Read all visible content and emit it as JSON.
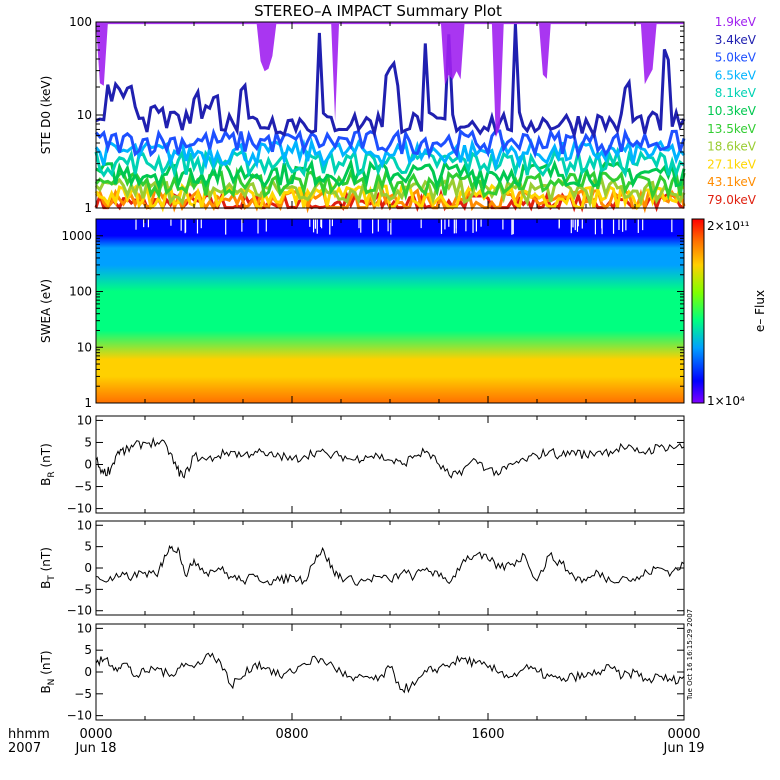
{
  "title": "STEREO–A IMPACT Summary Plot",
  "stamp": "Tue Oct 16 16:15:29 2007",
  "time_axis": {
    "row1_label": "hhmm",
    "row2_label": "2007",
    "ticks": [
      {
        "hour": 0,
        "time": "0000",
        "date": "Jun 18"
      },
      {
        "hour": 8,
        "time": "0800",
        "date": ""
      },
      {
        "hour": 16,
        "time": "1600",
        "date": ""
      },
      {
        "hour": 24,
        "time": "0000",
        "date": "Jun 19"
      }
    ]
  },
  "chart_data": [
    {
      "id": "ste",
      "type": "line",
      "ylabel": "STE D0 (keV)",
      "yscale": "log",
      "ylim": [
        1,
        100
      ],
      "yticks": [
        {
          "v": 1,
          "label": "1"
        },
        {
          "v": 10,
          "label": "10"
        },
        {
          "v": 100,
          "label": "100"
        }
      ],
      "xlim": [
        0,
        24
      ],
      "series": [
        {
          "name": "1.9keV",
          "color": "#a020f0",
          "baseline": 110,
          "spikes": [
            [
              0.1,
              0.4,
              20
            ],
            [
              6.6,
              7.3,
              40
            ],
            [
              9.7,
              9.9,
              10
            ],
            [
              14.2,
              14.9,
              30
            ],
            [
              16.3,
              16.5,
              8
            ],
            [
              18.1,
              18.5,
              30
            ],
            [
              22.3,
              22.8,
              30
            ]
          ]
        },
        {
          "name": "3.4keV",
          "color": "#2020b0",
          "baseline": 8,
          "spikes": [
            [
              0.4,
              1.5,
              22
            ],
            [
              1.5,
              3.0,
              13
            ],
            [
              4.0,
              5.0,
              18
            ],
            [
              5.8,
              6.2,
              30
            ],
            [
              9.0,
              9.2,
              100
            ],
            [
              11.8,
              12.4,
              40
            ],
            [
              13.3,
              13.5,
              60
            ],
            [
              14.3,
              14.5,
              100
            ],
            [
              17.0,
              17.2,
              100
            ],
            [
              21.6,
              21.8,
              30
            ],
            [
              23.2,
              23.4,
              60
            ]
          ]
        },
        {
          "name": "5.0keV",
          "color": "#1e50ff",
          "baseline": 5,
          "spikes": []
        },
        {
          "name": "6.5keV",
          "color": "#00b4ff",
          "baseline": 3.8,
          "spikes": []
        },
        {
          "name": "8.1keV",
          "color": "#00d2b4",
          "baseline": 3.0,
          "spikes": []
        },
        {
          "name": "10.3keV",
          "color": "#00c850",
          "baseline": 2.3,
          "spikes": []
        },
        {
          "name": "13.5keV",
          "color": "#32cd32",
          "baseline": 1.8,
          "spikes": []
        },
        {
          "name": "18.6keV",
          "color": "#9acd32",
          "baseline": 1.5,
          "spikes": []
        },
        {
          "name": "27.1keV",
          "color": "#ffd700",
          "baseline": 1.3,
          "spikes": []
        },
        {
          "name": "43.1keV",
          "color": "#ff8c00",
          "baseline": 1.15,
          "spikes": []
        },
        {
          "name": "79.0keV",
          "color": "#e02010",
          "baseline": 1.05,
          "spikes": []
        }
      ]
    },
    {
      "id": "swea",
      "type": "heatmap",
      "ylabel": "SWEA (eV)",
      "yscale": "log",
      "ylim": [
        1,
        2000
      ],
      "yticks": [
        {
          "v": 1,
          "label": "1"
        },
        {
          "v": 10,
          "label": "10"
        },
        {
          "v": 100,
          "label": "100"
        },
        {
          "v": 1000,
          "label": "1000"
        }
      ],
      "xlim": [
        0,
        24
      ],
      "colorbar": {
        "label": "e– Flux",
        "min": "1×10⁴",
        "max": "2×10¹¹",
        "min_value": 10000,
        "max_value": 200000000000
      },
      "profile": [
        {
          "ev": 1,
          "level": 0.78
        },
        {
          "ev": 3,
          "level": 0.72
        },
        {
          "ev": 6,
          "level": 0.62
        },
        {
          "ev": 20,
          "level": 0.42
        },
        {
          "ev": 100,
          "level": 0.36
        },
        {
          "ev": 300,
          "level": 0.3
        },
        {
          "ev": 600,
          "level": 0.2
        },
        {
          "ev": 1000,
          "level": 0.1
        },
        {
          "ev": 2000,
          "level": 0.02
        }
      ]
    },
    {
      "id": "br",
      "type": "line",
      "ylabel": "B_R (nT)",
      "ylabel_main": "B",
      "ylabel_sub": "R",
      "ylabel_unit": " (nT)",
      "ylim": [
        -11,
        11
      ],
      "yticks": [
        {
          "v": -10,
          "label": "−10"
        },
        {
          "v": -5,
          "label": "−5"
        },
        {
          "v": 0,
          "label": "0"
        },
        {
          "v": 5,
          "label": "5"
        },
        {
          "v": 10,
          "label": "10"
        }
      ],
      "xlim": [
        0,
        24
      ],
      "x": [
        0,
        0.3,
        0.6,
        0.9,
        1.2,
        1.5,
        2.0,
        2.5,
        2.9,
        3.3,
        3.6,
        4.0,
        4.5,
        5.0,
        5.5,
        6.0,
        6.5,
        7.0,
        7.5,
        8.0,
        8.5,
        9.0,
        9.5,
        10.0,
        10.5,
        11.0,
        11.5,
        12.0,
        12.5,
        13.0,
        13.5,
        14.0,
        14.5,
        15.0,
        15.5,
        16.0,
        16.5,
        17.0,
        17.5,
        18.0,
        18.5,
        19.0,
        19.5,
        20.0,
        20.5,
        21.0,
        21.5,
        22.0,
        22.5,
        23.0,
        23.5,
        24.0
      ],
      "values": [
        1,
        -2,
        -1,
        3,
        3,
        4,
        5,
        5,
        4,
        -1,
        -3,
        2,
        1,
        2,
        3,
        2,
        3,
        2,
        2,
        1,
        2,
        3,
        2,
        2,
        1,
        2,
        2,
        1,
        0,
        2,
        3,
        0,
        -3,
        -1,
        1,
        -1,
        -2,
        0,
        1,
        2,
        3,
        2,
        3,
        2,
        3,
        3,
        4,
        3,
        3,
        4,
        4,
        4
      ]
    },
    {
      "id": "bt",
      "type": "line",
      "ylabel": "B_T (nT)",
      "ylabel_main": "B",
      "ylabel_sub": "T",
      "ylabel_unit": " (nT)",
      "ylim": [
        -11,
        11
      ],
      "yticks": [
        {
          "v": -10,
          "label": "−10"
        },
        {
          "v": -5,
          "label": "−5"
        },
        {
          "v": 0,
          "label": "0"
        },
        {
          "v": 5,
          "label": "5"
        },
        {
          "v": 10,
          "label": "10"
        }
      ],
      "xlim": [
        0,
        24
      ],
      "x": [
        0,
        0.5,
        1.0,
        1.5,
        2.0,
        2.5,
        2.8,
        3.1,
        3.4,
        3.7,
        4.0,
        4.5,
        5.0,
        5.5,
        6.0,
        6.5,
        7.0,
        7.5,
        8.0,
        8.5,
        9.0,
        9.3,
        9.7,
        10.0,
        10.5,
        11.0,
        11.5,
        12.0,
        12.5,
        13.0,
        13.5,
        14.0,
        14.5,
        15.0,
        15.5,
        16.0,
        16.5,
        17.0,
        17.5,
        18.0,
        18.5,
        19.0,
        19.5,
        20.0,
        20.5,
        21.0,
        21.5,
        22.0,
        22.5,
        23.0,
        23.5,
        24.0
      ],
      "values": [
        -2,
        -3,
        -2,
        -2,
        -1,
        -2,
        3,
        5,
        4,
        -2,
        2,
        -1,
        0,
        -2,
        -3,
        -2,
        -3,
        -3,
        -2,
        -3,
        3,
        4,
        -1,
        -2,
        -3,
        -3,
        -2,
        -3,
        -1,
        -2,
        0,
        -2,
        -3,
        2,
        3,
        2,
        0,
        1,
        3,
        -3,
        3,
        1,
        -2,
        -3,
        -1,
        -3,
        -2,
        -3,
        -1,
        0,
        -1,
        1
      ]
    },
    {
      "id": "bn",
      "type": "line",
      "ylabel": "B_N (nT)",
      "ylabel_main": "B",
      "ylabel_sub": "N",
      "ylabel_unit": " (nT)",
      "ylim": [
        -11,
        11
      ],
      "yticks": [
        {
          "v": -10,
          "label": "−10"
        },
        {
          "v": -5,
          "label": "−5"
        },
        {
          "v": 0,
          "label": "0"
        },
        {
          "v": 5,
          "label": "5"
        },
        {
          "v": 10,
          "label": "10"
        }
      ],
      "xlim": [
        0,
        24
      ],
      "x": [
        0,
        0.4,
        0.8,
        1.2,
        1.6,
        2.0,
        2.5,
        3.0,
        3.5,
        4.0,
        4.5,
        5.0,
        5.5,
        6.0,
        6.5,
        7.0,
        7.5,
        8.0,
        8.5,
        9.0,
        9.5,
        10.0,
        10.5,
        11.0,
        11.5,
        12.0,
        12.5,
        13.0,
        13.5,
        14.0,
        14.5,
        15.0,
        15.5,
        16.0,
        16.5,
        17.0,
        17.5,
        18.0,
        18.5,
        19.0,
        19.5,
        20.0,
        20.5,
        21.0,
        21.5,
        22.0,
        22.5,
        23.0,
        23.5,
        24.0
      ],
      "values": [
        2,
        3,
        1,
        2,
        -1,
        0,
        1,
        -1,
        2,
        1,
        4,
        3,
        -3,
        -1,
        2,
        1,
        -1,
        0,
        2,
        3,
        2,
        0,
        -2,
        -1,
        -2,
        1,
        -4,
        -3,
        0,
        1,
        2,
        3,
        2,
        1,
        0,
        -1,
        1,
        0,
        -1,
        -2,
        -1,
        -1,
        0,
        1,
        -1,
        0,
        -2,
        -1,
        -2,
        -1
      ]
    }
  ]
}
